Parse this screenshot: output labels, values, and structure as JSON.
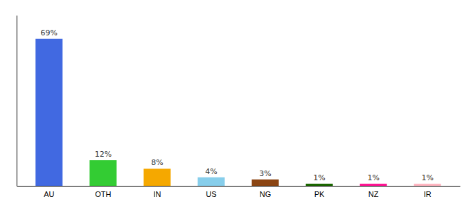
{
  "chart_data": {
    "type": "bar",
    "categories": [
      "AU",
      "OTH",
      "IN",
      "US",
      "NG",
      "PK",
      "NZ",
      "IR"
    ],
    "values": [
      69,
      12,
      8,
      4,
      3,
      1,
      1,
      1
    ],
    "value_labels": [
      "69%",
      "12%",
      "8%",
      "4%",
      "3%",
      "1%",
      "1%",
      "1%"
    ],
    "colors": [
      "#4169e1",
      "#33cc33",
      "#f5a800",
      "#87ceeb",
      "#8b4513",
      "#1a6600",
      "#ff1493",
      "#ffb6c1"
    ],
    "ylim": [
      0,
      80
    ],
    "data_labels": true,
    "tick_labels": "x",
    "grid": false
  }
}
